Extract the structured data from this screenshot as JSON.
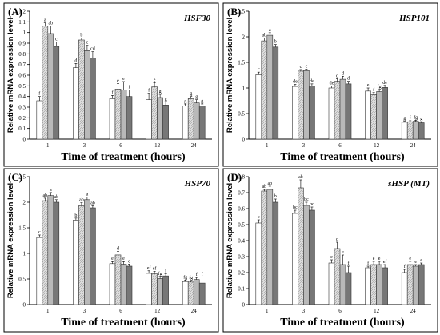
{
  "chart_data": [
    {
      "type": "bar",
      "panel": "(A)",
      "gene": "HSF30",
      "ylabel": "Relative mRNA expression  level",
      "xlabel": "Time of treatment (hours)",
      "categories": [
        "1",
        "3",
        "6",
        "12",
        "24"
      ],
      "ylim": [
        0,
        1.2
      ],
      "yticks": [
        "0",
        "0.1",
        "0.2",
        "0.3",
        "0.4",
        "0.5",
        "0.6",
        "0.7",
        "0.8",
        "0.9",
        "1",
        "1.1",
        "1.2"
      ],
      "series": [
        {
          "values": [
            0.36,
            0.67,
            0.38,
            0.37,
            0.31
          ],
          "errors": [
            0.04,
            0.04,
            0.03,
            0.06,
            0.02
          ]
        },
        {
          "values": [
            1.06,
            0.93,
            0.47,
            0.49,
            0.38
          ],
          "errors": [
            0.03,
            0.02,
            0.05,
            0.04,
            0.02
          ]
        },
        {
          "values": [
            0.99,
            0.83,
            0.46,
            0.39,
            0.34
          ],
          "errors": [
            0.07,
            0.05,
            0.08,
            0.03,
            0.03
          ]
        },
        {
          "values": [
            0.87,
            0.76,
            0.4,
            0.32,
            0.31
          ],
          "errors": [
            0.04,
            0.06,
            0.06,
            0.03,
            0.02
          ]
        }
      ],
      "labels": [
        [
          "f",
          "a",
          "ab",
          "c"
        ],
        [
          "d",
          "b",
          "c",
          "cd"
        ],
        [
          "f",
          "e",
          "e",
          "f"
        ],
        [
          "f",
          "e",
          "g",
          "g"
        ],
        [
          "g",
          "g",
          "g",
          "g"
        ]
      ]
    },
    {
      "type": "bar",
      "panel": "(B)",
      "gene": "HSP101",
      "ylabel": "Relative mRNA expression level",
      "xlabel": "Time of treatment (hours)",
      "categories": [
        "1",
        "3",
        "6",
        "12",
        "24"
      ],
      "ylim": [
        0,
        2.5
      ],
      "yticks": [
        "0",
        "0.5",
        "1",
        "1.5",
        "2",
        "2.5"
      ],
      "series": [
        {
          "values": [
            1.26,
            1.03,
            1.0,
            0.94,
            0.33
          ],
          "errors": [
            0.05,
            0.04,
            0.04,
            0.06,
            0.02
          ]
        },
        {
          "values": [
            1.92,
            1.33,
            1.13,
            0.87,
            0.34
          ],
          "errors": [
            0.06,
            0.03,
            0.05,
            0.04,
            0.02
          ]
        },
        {
          "values": [
            2.03,
            1.34,
            1.17,
            0.93,
            0.35
          ],
          "errors": [
            0.05,
            0.03,
            0.06,
            0.04,
            0.02
          ]
        },
        {
          "values": [
            1.8,
            1.04,
            1.08,
            1.01,
            0.32
          ],
          "errors": [
            0.05,
            0.04,
            0.05,
            0.04,
            0.02
          ]
        }
      ],
      "labels": [
        [
          "c",
          "ab",
          "a",
          "b"
        ],
        [
          "de",
          "c",
          "c",
          "de"
        ],
        [
          "de",
          "d",
          "d",
          "d"
        ],
        [
          "e",
          "f",
          "fg",
          "de"
        ],
        [
          "g",
          "f",
          "fg",
          "g"
        ]
      ]
    },
    {
      "type": "bar",
      "panel": "(C)",
      "gene": "HSP70",
      "ylabel": "Relative mRNA expression  level",
      "xlabel": "Time of treatment (hours)",
      "categories": [
        "1",
        "3",
        "6",
        "12",
        "24"
      ],
      "ylim": [
        0,
        2.5
      ],
      "yticks": [
        "0",
        "0.5",
        "1",
        "1.5",
        "2",
        "2.5"
      ],
      "series": [
        {
          "values": [
            1.31,
            1.65,
            0.8,
            0.61,
            0.45
          ],
          "errors": [
            0.05,
            0.04,
            0.04,
            0.05,
            0.03
          ]
        },
        {
          "values": [
            2.03,
            1.93,
            0.97,
            0.6,
            0.44
          ],
          "errors": [
            0.05,
            0.06,
            0.07,
            0.05,
            0.03
          ]
        },
        {
          "values": [
            2.13,
            2.05,
            0.79,
            0.51,
            0.49
          ],
          "errors": [
            0.06,
            0.05,
            0.05,
            0.04,
            0.04
          ]
        },
        {
          "values": [
            2.0,
            1.89,
            0.75,
            0.56,
            0.42
          ],
          "errors": [
            0.05,
            0.04,
            0.04,
            0.04,
            0.12
          ]
        }
      ],
      "labels": [
        [
          "c",
          "ab",
          "a",
          "ab"
        ],
        [
          "b",
          "ab",
          "a",
          "ab"
        ],
        [
          "e",
          "d",
          "e",
          "e"
        ],
        [
          "ef",
          "ef",
          "fg",
          "f"
        ],
        [
          "fg",
          "fg",
          "f",
          "f"
        ]
      ]
    },
    {
      "type": "bar",
      "panel": "(D)",
      "gene": "sHSP (MT)",
      "ylabel": "Relative mRNA expression level",
      "xlabel": "Time of treatment (hours)",
      "categories": [
        "1",
        "3",
        "6",
        "12",
        "24"
      ],
      "ylim": [
        0,
        0.8
      ],
      "yticks": [
        "0",
        "0.1",
        "0.2",
        "0.3",
        "0.4",
        "0.5",
        "0.6",
        "0.7",
        "0.8"
      ],
      "series": [
        {
          "values": [
            0.51,
            0.57,
            0.26,
            0.23,
            0.2
          ],
          "errors": [
            0.02,
            0.02,
            0.02,
            0.01,
            0.02
          ]
        },
        {
          "values": [
            0.71,
            0.73,
            0.35,
            0.25,
            0.25
          ],
          "errors": [
            0.01,
            0.05,
            0.04,
            0.02,
            0.02
          ]
        },
        {
          "values": [
            0.72,
            0.62,
            0.25,
            0.25,
            0.24
          ],
          "errors": [
            0.02,
            0.02,
            0.06,
            0.02,
            0.01
          ]
        },
        {
          "values": [
            0.64,
            0.59,
            0.2,
            0.23,
            0.25
          ],
          "errors": [
            0.02,
            0.02,
            0.04,
            0.02,
            0.01
          ]
        }
      ],
      "labels": [
        [
          "c",
          "ab",
          "ab",
          "b"
        ],
        [
          "bc",
          "ab",
          "bc",
          "bc"
        ],
        [
          "e",
          "d",
          "e",
          "f"
        ],
        [
          "f",
          "e",
          "e",
          "ef"
        ],
        [
          "f",
          "e",
          "e",
          "e"
        ]
      ]
    }
  ],
  "colors": {
    "series_fills": [
      "#ffffff",
      "#b9b9b9",
      "#dcdcdc",
      "#777777"
    ],
    "axis": "#000000"
  }
}
